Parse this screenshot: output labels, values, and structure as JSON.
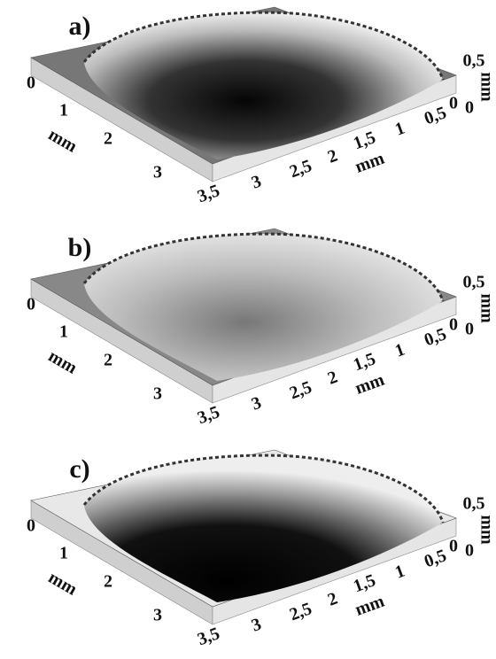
{
  "panels": [
    {
      "label": "a)",
      "left_ticks": [
        "0",
        "1",
        "2",
        "3"
      ],
      "left_unit": "mm",
      "bottom_ticks": [
        "3,5",
        "3",
        "2,5",
        "2",
        "1,5",
        "1",
        "0,5"
      ],
      "bottom_unit": "mm",
      "z_tick": "0,5",
      "z_unit": "mm",
      "z_zero": "0",
      "corner_zero": "0"
    },
    {
      "label": "b)",
      "left_ticks": [
        "0",
        "1",
        "2",
        "3"
      ],
      "left_unit": "mm",
      "bottom_ticks": [
        "3,5",
        "3",
        "2,5",
        "2",
        "1,5",
        "1",
        "0,5"
      ],
      "bottom_unit": "mm",
      "z_tick": "0,5",
      "z_unit": "mm",
      "z_zero": "0",
      "corner_zero": "0"
    },
    {
      "label": "c)",
      "left_ticks": [
        "0",
        "1",
        "2",
        "3"
      ],
      "left_unit": "mm",
      "bottom_ticks": [
        "3,5",
        "3",
        "2,5",
        "2",
        "1,5",
        "1",
        "0,5"
      ],
      "bottom_unit": "mm",
      "z_tick": "0,5",
      "z_unit": "mm",
      "z_zero": "0",
      "corner_zero": "0"
    }
  ]
}
